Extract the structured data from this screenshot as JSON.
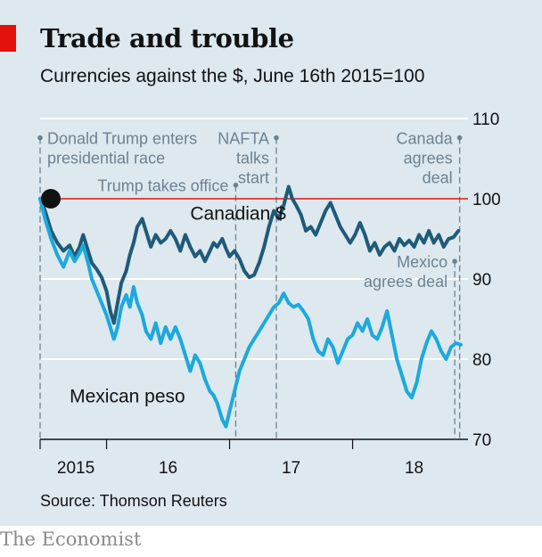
{
  "header": {
    "title": "Trade and trouble",
    "subtitle": "Currencies against the $, June 16th 2015=100"
  },
  "footer": {
    "source": "Source: Thomson Reuters",
    "brand": "The Economist"
  },
  "colors": {
    "background": "#dde8ef",
    "accent_red": "#e3120b",
    "canadian": "#1e5b78",
    "mexican": "#1da9dc",
    "annotation": "#6d8291"
  },
  "chart_data": {
    "type": "line",
    "title": "Trade and trouble",
    "subtitle": "Currencies against the $, June 16th 2015=100",
    "xlabel": "",
    "ylabel": "",
    "ylim": [
      70,
      110
    ],
    "xlim": [
      2015.46,
      2018.88
    ],
    "yticks": [
      70,
      80,
      90,
      100,
      110
    ],
    "ytick_labels": [
      "70",
      "80",
      "90",
      "100",
      "110"
    ],
    "xtick_labels": [
      {
        "label": "2015",
        "x": 2015.75
      },
      {
        "label": "16",
        "x": 2016.5
      },
      {
        "label": "17",
        "x": 2017.5
      },
      {
        "label": "18",
        "x": 2018.5
      }
    ],
    "year_boundaries": [
      2016.0,
      2017.0,
      2018.0
    ],
    "grid": true,
    "baseline": {
      "value": 100,
      "color": "#e3120b"
    },
    "start_marker": {
      "x": 2015.46,
      "y": 100
    },
    "series": [
      {
        "name": "Canadian $",
        "label": "Canadian $",
        "color": "#1e5b78",
        "label_anchor": {
          "x": 2016.68,
          "y": 97.4
        },
        "points": [
          [
            2015.46,
            100
          ],
          [
            2015.5,
            98.5
          ],
          [
            2015.55,
            96
          ],
          [
            2015.6,
            94.5
          ],
          [
            2015.65,
            93.5
          ],
          [
            2015.7,
            94.2
          ],
          [
            2015.74,
            92.8
          ],
          [
            2015.78,
            94
          ],
          [
            2015.81,
            95.5
          ],
          [
            2015.85,
            93.5
          ],
          [
            2015.88,
            92
          ],
          [
            2015.92,
            91.2
          ],
          [
            2015.96,
            90.2
          ],
          [
            2016.0,
            88.5
          ],
          [
            2016.03,
            86
          ],
          [
            2016.06,
            84.5
          ],
          [
            2016.09,
            87
          ],
          [
            2016.12,
            89.5
          ],
          [
            2016.16,
            91
          ],
          [
            2016.19,
            93
          ],
          [
            2016.22,
            94.5
          ],
          [
            2016.25,
            96.5
          ],
          [
            2016.29,
            97.5
          ],
          [
            2016.32,
            96
          ],
          [
            2016.36,
            94
          ],
          [
            2016.4,
            95.5
          ],
          [
            2016.44,
            94.5
          ],
          [
            2016.48,
            95
          ],
          [
            2016.52,
            96
          ],
          [
            2016.56,
            95
          ],
          [
            2016.6,
            93.5
          ],
          [
            2016.64,
            95.5
          ],
          [
            2016.68,
            94
          ],
          [
            2016.72,
            92.8
          ],
          [
            2016.76,
            93.5
          ],
          [
            2016.8,
            92.2
          ],
          [
            2016.84,
            93.5
          ],
          [
            2016.87,
            94.5
          ],
          [
            2016.9,
            94
          ],
          [
            2016.94,
            95
          ],
          [
            2016.97,
            93.8
          ],
          [
            2017.0,
            92.8
          ],
          [
            2017.04,
            93.5
          ],
          [
            2017.08,
            92.5
          ],
          [
            2017.12,
            91
          ],
          [
            2017.16,
            90.2
          ],
          [
            2017.2,
            90.5
          ],
          [
            2017.24,
            92
          ],
          [
            2017.28,
            94
          ],
          [
            2017.32,
            96.5
          ],
          [
            2017.36,
            98.5
          ],
          [
            2017.4,
            97.5
          ],
          [
            2017.44,
            99.2
          ],
          [
            2017.48,
            101.5
          ],
          [
            2017.51,
            100
          ],
          [
            2017.54,
            99.2
          ],
          [
            2017.58,
            98
          ],
          [
            2017.62,
            96
          ],
          [
            2017.66,
            96.5
          ],
          [
            2017.7,
            95.5
          ],
          [
            2017.74,
            97
          ],
          [
            2017.78,
            98.5
          ],
          [
            2017.82,
            99.5
          ],
          [
            2017.86,
            98
          ],
          [
            2017.9,
            96.5
          ],
          [
            2017.94,
            95.5
          ],
          [
            2017.98,
            94.5
          ],
          [
            2018.02,
            95.5
          ],
          [
            2018.06,
            97
          ],
          [
            2018.1,
            95.5
          ],
          [
            2018.14,
            93.5
          ],
          [
            2018.18,
            94.5
          ],
          [
            2018.22,
            93
          ],
          [
            2018.26,
            94
          ],
          [
            2018.3,
            94.5
          ],
          [
            2018.34,
            93.5
          ],
          [
            2018.38,
            95
          ],
          [
            2018.42,
            94.2
          ],
          [
            2018.46,
            94.8
          ],
          [
            2018.5,
            94
          ],
          [
            2018.54,
            95.5
          ],
          [
            2018.58,
            94.5
          ],
          [
            2018.62,
            96
          ],
          [
            2018.66,
            94.5
          ],
          [
            2018.7,
            95.5
          ],
          [
            2018.74,
            94
          ],
          [
            2018.78,
            95
          ],
          [
            2018.82,
            95.2
          ],
          [
            2018.86,
            96
          ]
        ]
      },
      {
        "name": "Mexican peso",
        "label": "Mexican peso",
        "color": "#1da9dc",
        "label_anchor": {
          "x": 2015.7,
          "y": 74.6
        },
        "points": [
          [
            2015.46,
            100
          ],
          [
            2015.5,
            97.5
          ],
          [
            2015.55,
            95
          ],
          [
            2015.6,
            93
          ],
          [
            2015.65,
            91.5
          ],
          [
            2015.7,
            93.5
          ],
          [
            2015.74,
            92.2
          ],
          [
            2015.78,
            93.2
          ],
          [
            2015.81,
            94.2
          ],
          [
            2015.85,
            92
          ],
          [
            2015.88,
            90
          ],
          [
            2015.92,
            88.5
          ],
          [
            2015.96,
            87
          ],
          [
            2016.0,
            85.5
          ],
          [
            2016.03,
            84
          ],
          [
            2016.06,
            82.5
          ],
          [
            2016.09,
            84
          ],
          [
            2016.12,
            86.5
          ],
          [
            2016.16,
            88
          ],
          [
            2016.19,
            86.5
          ],
          [
            2016.22,
            89
          ],
          [
            2016.25,
            87
          ],
          [
            2016.29,
            85.5
          ],
          [
            2016.32,
            83.5
          ],
          [
            2016.36,
            82.5
          ],
          [
            2016.4,
            84.5
          ],
          [
            2016.44,
            82
          ],
          [
            2016.48,
            84
          ],
          [
            2016.52,
            82.5
          ],
          [
            2016.56,
            84
          ],
          [
            2016.6,
            82.5
          ],
          [
            2016.64,
            80.5
          ],
          [
            2016.68,
            78.5
          ],
          [
            2016.72,
            80.5
          ],
          [
            2016.76,
            79.5
          ],
          [
            2016.8,
            77.5
          ],
          [
            2016.84,
            76
          ],
          [
            2016.87,
            75.5
          ],
          [
            2016.9,
            74.5
          ],
          [
            2016.94,
            72.5
          ],
          [
            2016.97,
            71.6
          ],
          [
            2017.0,
            73.5
          ],
          [
            2017.04,
            76
          ],
          [
            2017.08,
            78.5
          ],
          [
            2017.12,
            80
          ],
          [
            2017.16,
            81.5
          ],
          [
            2017.2,
            82.5
          ],
          [
            2017.24,
            83.5
          ],
          [
            2017.28,
            84.5
          ],
          [
            2017.32,
            85.5
          ],
          [
            2017.36,
            86.5
          ],
          [
            2017.4,
            87
          ],
          [
            2017.44,
            88.2
          ],
          [
            2017.48,
            87
          ],
          [
            2017.52,
            86.5
          ],
          [
            2017.56,
            86.8
          ],
          [
            2017.6,
            86
          ],
          [
            2017.64,
            85
          ],
          [
            2017.68,
            82.5
          ],
          [
            2017.72,
            81
          ],
          [
            2017.76,
            80.5
          ],
          [
            2017.8,
            82.5
          ],
          [
            2017.84,
            81.5
          ],
          [
            2017.88,
            79.5
          ],
          [
            2017.92,
            81
          ],
          [
            2017.96,
            82.5
          ],
          [
            2018.0,
            83
          ],
          [
            2018.04,
            84.5
          ],
          [
            2018.08,
            83.5
          ],
          [
            2018.12,
            85
          ],
          [
            2018.16,
            83
          ],
          [
            2018.2,
            82.5
          ],
          [
            2018.24,
            84
          ],
          [
            2018.28,
            86
          ],
          [
            2018.32,
            83
          ],
          [
            2018.36,
            80
          ],
          [
            2018.4,
            78
          ],
          [
            2018.44,
            76
          ],
          [
            2018.48,
            75.2
          ],
          [
            2018.52,
            77
          ],
          [
            2018.56,
            80
          ],
          [
            2018.6,
            82
          ],
          [
            2018.64,
            83.5
          ],
          [
            2018.68,
            82.5
          ],
          [
            2018.72,
            81
          ],
          [
            2018.76,
            80
          ],
          [
            2018.8,
            81.5
          ],
          [
            2018.84,
            82
          ],
          [
            2018.88,
            81.8
          ]
        ]
      }
    ],
    "annotations": [
      {
        "date": 2015.46,
        "lines": [
          "Donald Trump enters",
          "presidential race"
        ],
        "y_top": 107.6,
        "align": "start"
      },
      {
        "date": 2017.05,
        "lines": [
          "Trump takes office"
        ],
        "y_top": 101.7,
        "align": "end"
      },
      {
        "date": 2017.38,
        "lines": [
          "NAFTA",
          "talks",
          "start"
        ],
        "y_top": 107.6,
        "align": "end"
      },
      {
        "date": 2018.83,
        "lines": [
          "Mexico",
          "agrees deal"
        ],
        "y_top": 92.2,
        "y_bottom": 70,
        "align": "end"
      },
      {
        "date": 2018.87,
        "lines": [
          "Canada",
          "agrees",
          "deal"
        ],
        "y_top": 107.6,
        "align": "end"
      }
    ]
  }
}
